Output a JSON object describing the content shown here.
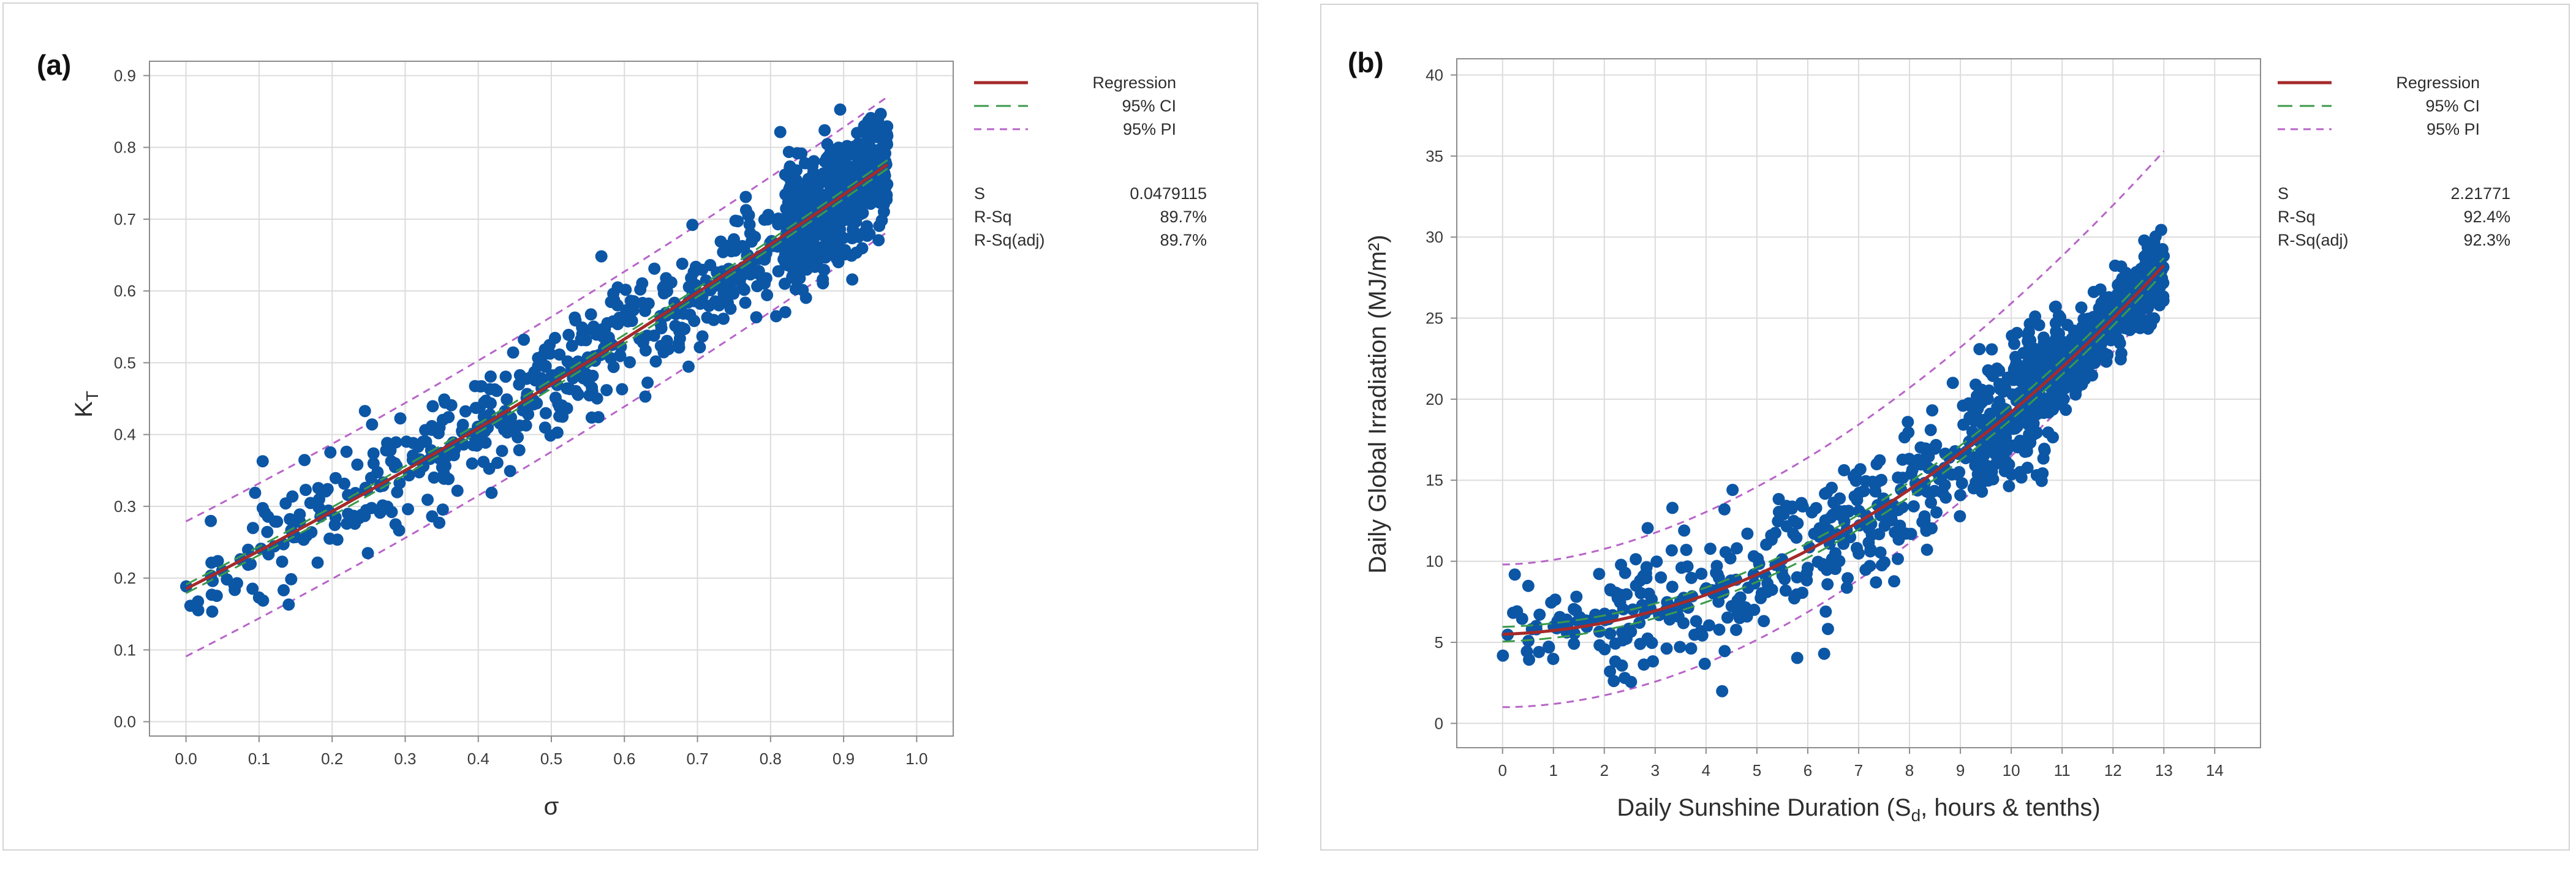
{
  "chart_data": [
    {
      "type": "scatter",
      "panel_label": "(a)",
      "xlabel": "σ",
      "ylabel_main": "K",
      "ylabel_sub": "T",
      "xlim": [
        -0.05,
        1.05
      ],
      "ylim": [
        -0.02,
        0.92
      ],
      "xticks": [
        "0.0",
        "0.1",
        "0.2",
        "0.3",
        "0.4",
        "0.5",
        "0.6",
        "0.7",
        "0.8",
        "0.9",
        "1.0"
      ],
      "yticks": [
        "0.0",
        "0.1",
        "0.2",
        "0.3",
        "0.4",
        "0.5",
        "0.6",
        "0.7",
        "0.8",
        "0.9"
      ],
      "fit": {
        "order": "quadratic",
        "coef": [
          0.185,
          0.52,
          0.1
        ],
        "x_range": [
          0.0,
          0.96
        ]
      },
      "ci_halfwidth": 0.006,
      "pi_halfwidth": 0.094,
      "point_seed": 11,
      "point_count": 1100,
      "legend": {
        "entries": [
          {
            "label": "Regression",
            "style": "solid",
            "color": "#a52a2a"
          },
          {
            "label": "95% CI",
            "style": "dashed",
            "color": "#3a9a4a"
          },
          {
            "label": "95% PI",
            "style": "dashed",
            "color": "#b864c8"
          }
        ],
        "stats": [
          {
            "name": "S",
            "value": "0.0479115"
          },
          {
            "name": "R-Sq",
            "value": "89.7%"
          },
          {
            "name": "R-Sq(adj)",
            "value": "89.7%"
          }
        ]
      }
    },
    {
      "type": "scatter",
      "panel_label": "(b)",
      "xlabel": "Daily Sunshine Duration (Sd, hours & tenths)",
      "xlabel_parts": [
        "Daily Sunshine Duration (S",
        "d",
        ", hours & tenths)"
      ],
      "ylabel": "Daily Global Irradiation (MJ/m²)",
      "xlim": [
        -0.9,
        14.9
      ],
      "ylim": [
        -1.5,
        41
      ],
      "xticks": [
        "0",
        "1",
        "2",
        "3",
        "4",
        "5",
        "6",
        "7",
        "8",
        "9",
        "10",
        "11",
        "12",
        "13",
        "14"
      ],
      "yticks": [
        "0",
        "5",
        "10",
        "15",
        "20",
        "25",
        "30",
        "35",
        "40"
      ],
      "fit": {
        "order": "quadratic",
        "coef": [
          5.5,
          0.1,
          0.127
        ],
        "x_range": [
          0.0,
          13.0
        ]
      },
      "ci_halfwidth": 0.45,
      "pi_range": {
        "lower_start": 1.0,
        "lower_end": 26.5,
        "upper_start": 9.8,
        "upper_end": 35.3
      },
      "point_seed": 29,
      "point_count": 1100,
      "legend": {
        "entries": [
          {
            "label": "Regression",
            "style": "solid",
            "color": "#a52a2a"
          },
          {
            "label": "95% CI",
            "style": "dashed",
            "color": "#3a9a4a"
          },
          {
            "label": "95% PI",
            "style": "dashed",
            "color": "#b864c8"
          }
        ],
        "stats": [
          {
            "name": "S",
            "value": "2.21771"
          },
          {
            "name": "R-Sq",
            "value": "92.4%"
          },
          {
            "name": "R-Sq(adj)",
            "value": "92.3%"
          }
        ]
      }
    }
  ]
}
